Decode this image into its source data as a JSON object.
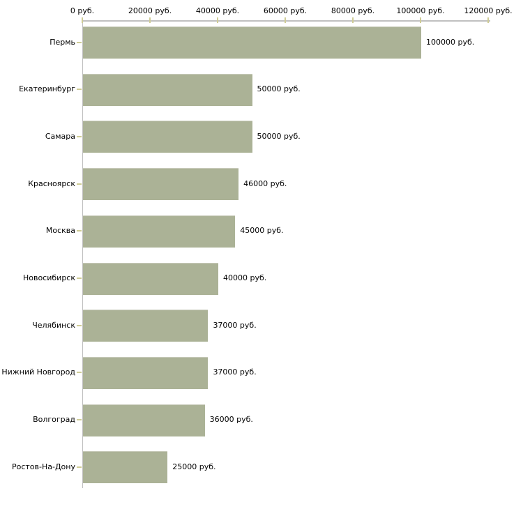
{
  "chart_data": {
    "type": "bar",
    "orientation": "horizontal",
    "title": "",
    "xlabel": "",
    "ylabel": "",
    "unit": "руб.",
    "categories": [
      "Пермь",
      "Екатеринбург",
      "Самара",
      "Красноярск",
      "Москва",
      "Новосибирск",
      "Челябинск",
      "Нижний Новгород",
      "Волгоград",
      "Ростов-На-Дону"
    ],
    "values": [
      100000,
      50000,
      50000,
      46000,
      45000,
      40000,
      37000,
      37000,
      36000,
      25000
    ],
    "value_labels": [
      "100000 руб.",
      "50000 руб.",
      "50000 руб.",
      "46000 руб.",
      "45000 руб.",
      "40000 руб.",
      "37000 руб.",
      "37000 руб.",
      "36000 руб.",
      "25000 руб."
    ],
    "x_ticks": [
      "0 руб.",
      "20000 руб.",
      "40000 руб.",
      "60000 руб.",
      "80000 руб.",
      "100000 руб.",
      "120000 руб."
    ],
    "x_tick_values": [
      0,
      20000,
      40000,
      60000,
      80000,
      100000,
      120000
    ],
    "xlim": [
      0,
      120000
    ],
    "grid": false,
    "legend_position": "none",
    "colors": {
      "bar": "#abb296",
      "bar_top_edge": "#c6c9b8",
      "axis_line": "#c0c0c0",
      "tick_mark": "#cfcc96",
      "text": "#000000",
      "background": "#ffffff"
    }
  }
}
